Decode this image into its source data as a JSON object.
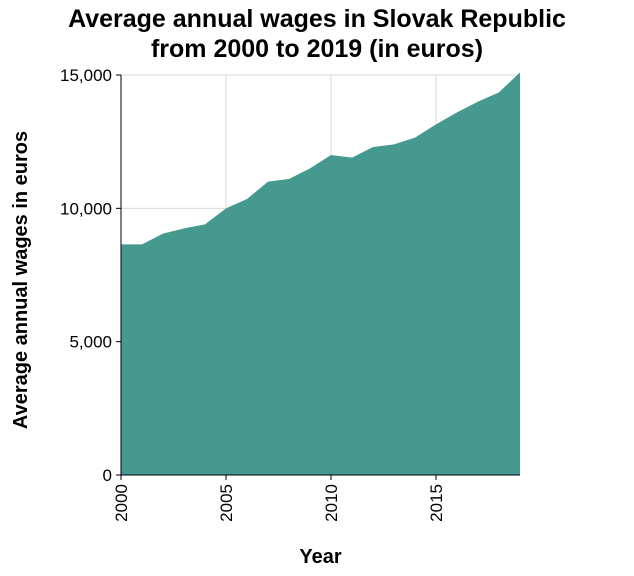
{
  "chart_data": {
    "type": "area",
    "title_lines": [
      "Average annual wages in Slovak Republic",
      "from 2000 to 2019 (in euros)"
    ],
    "xlabel": "Year",
    "ylabel": "Average annual wages in euros",
    "x": [
      2000,
      2001,
      2002,
      2003,
      2004,
      2005,
      2006,
      2007,
      2008,
      2009,
      2010,
      2011,
      2012,
      2013,
      2014,
      2015,
      2016,
      2017,
      2018,
      2019
    ],
    "series": [
      {
        "values": [
          8650,
          8650,
          9050,
          9250,
          9400,
          10000,
          10350,
          11000,
          11100,
          11500,
          12000,
          11900,
          12300,
          12400,
          12650,
          13150,
          13600,
          14000,
          14350,
          15100
        ],
        "color": "#45998f"
      }
    ],
    "xlim": [
      2000,
      2019
    ],
    "ylim": [
      0,
      15000
    ],
    "xticks": [
      2000,
      2005,
      2010,
      2015
    ],
    "xtick_labels": [
      "2000",
      "2005",
      "2010",
      "2015"
    ],
    "yticks": [
      0,
      5000,
      10000,
      15000
    ],
    "ytick_labels": [
      "0",
      "5,000",
      "10,000",
      "15,000"
    ],
    "grid": true
  }
}
